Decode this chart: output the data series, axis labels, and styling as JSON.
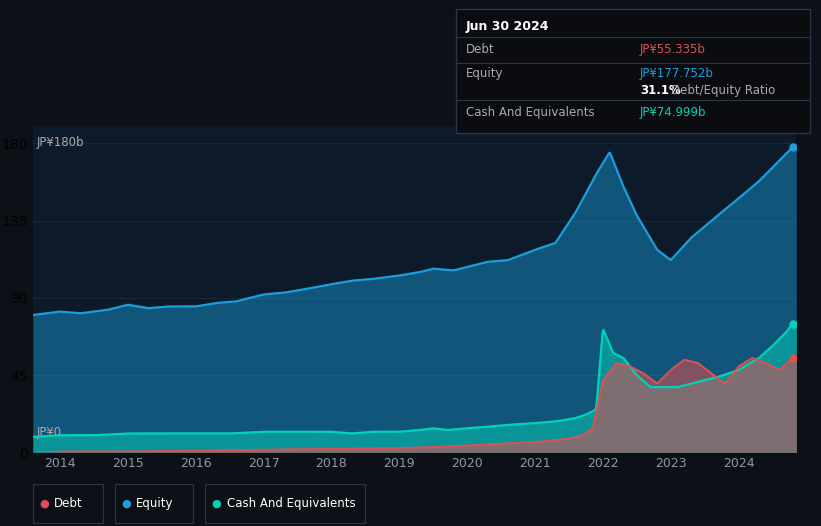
{
  "background_color": "#0d1117",
  "plot_bg_color": "#0d1a2a",
  "grid_color": "#1a2a3a",
  "equity_color": "#1a9fde",
  "debt_color": "#e05050",
  "cash_color": "#00d4b8",
  "ylabel": "JP¥180b",
  "y0_label": "JP¥0",
  "ylim": [
    0,
    190
  ],
  "xlim": [
    2013.6,
    2024.85
  ],
  "x_ticks": [
    2014,
    2015,
    2016,
    2017,
    2018,
    2019,
    2020,
    2021,
    2022,
    2023,
    2024
  ],
  "debt_label": "Debt",
  "equity_label": "Equity",
  "cash_label": "Cash And Equivalents",
  "tooltip_title": "Jun 30 2024",
  "debt_value": "JP¥55.335b",
  "equity_value": "JP¥177.752b",
  "ratio_pct": "31.1%",
  "ratio_text": "Debt/Equity Ratio",
  "cash_value": "JP¥74.999b",
  "equity_data": {
    "years": [
      2013.6,
      2014.0,
      2014.3,
      2014.7,
      2015.0,
      2015.3,
      2015.6,
      2016.0,
      2016.3,
      2016.6,
      2017.0,
      2017.3,
      2017.6,
      2018.0,
      2018.3,
      2018.6,
      2019.0,
      2019.3,
      2019.5,
      2019.8,
      2020.0,
      2020.3,
      2020.6,
      2021.0,
      2021.3,
      2021.6,
      2021.9,
      2022.1,
      2022.3,
      2022.5,
      2022.8,
      2023.0,
      2023.3,
      2023.6,
      2024.0,
      2024.3,
      2024.6,
      2024.8
    ],
    "values": [
      80,
      82,
      81,
      83,
      86,
      84,
      85,
      85,
      87,
      88,
      92,
      93,
      95,
      98,
      100,
      101,
      103,
      105,
      107,
      106,
      108,
      111,
      112,
      118,
      122,
      140,
      162,
      175,
      155,
      138,
      118,
      112,
      125,
      135,
      148,
      158,
      170,
      178
    ]
  },
  "debt_data": {
    "years": [
      2013.6,
      2014.0,
      2015.0,
      2016.0,
      2017.0,
      2018.0,
      2019.0,
      2019.5,
      2020.0,
      2020.5,
      2021.0,
      2021.5,
      2021.7,
      2021.85,
      2022.0,
      2022.2,
      2022.4,
      2022.6,
      2022.8,
      2023.0,
      2023.2,
      2023.4,
      2023.6,
      2023.8,
      2024.0,
      2024.2,
      2024.4,
      2024.6,
      2024.8
    ],
    "values": [
      0,
      0.5,
      0.5,
      1,
      1.5,
      2,
      2.5,
      3,
      4,
      5,
      6,
      8,
      10,
      14,
      42,
      52,
      50,
      46,
      40,
      48,
      54,
      52,
      46,
      40,
      50,
      55,
      52,
      48,
      55
    ]
  },
  "cash_data": {
    "years": [
      2013.6,
      2014.0,
      2014.5,
      2015.0,
      2015.5,
      2016.0,
      2016.5,
      2017.0,
      2017.5,
      2018.0,
      2018.3,
      2018.6,
      2019.0,
      2019.3,
      2019.5,
      2019.7,
      2020.0,
      2020.3,
      2020.6,
      2021.0,
      2021.3,
      2021.6,
      2021.75,
      2021.9,
      2022.0,
      2022.15,
      2022.3,
      2022.5,
      2022.7,
      2022.9,
      2023.1,
      2023.3,
      2023.5,
      2023.7,
      2024.0,
      2024.3,
      2024.5,
      2024.7,
      2024.8
    ],
    "values": [
      9,
      10,
      10,
      11,
      11,
      11,
      11,
      12,
      12,
      12,
      11,
      12,
      12,
      13,
      14,
      13,
      14,
      15,
      16,
      17,
      18,
      20,
      22,
      25,
      72,
      58,
      55,
      45,
      38,
      38,
      38,
      40,
      42,
      44,
      48,
      55,
      62,
      70,
      75
    ]
  }
}
